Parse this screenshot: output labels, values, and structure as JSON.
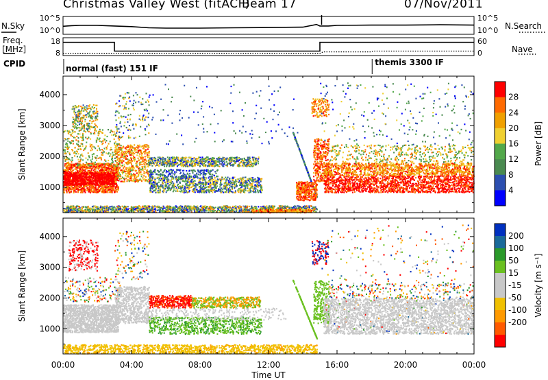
{
  "header": {
    "station": "Christmas Valley West (fitACF)",
    "beam": "Beam 17",
    "date": "07/Nov/2011"
  },
  "status_panel": {
    "left_top": "N.Sky",
    "left_mid_1": "Freq.",
    "left_mid_2": "[MHz]",
    "cpid_label": "CPID",
    "right_top": "N.Search",
    "right_mid": "Nave",
    "noise_ticks_left": [
      "10^5",
      "10^0"
    ],
    "noise_ticks_right": [
      "10^5",
      "10^0"
    ],
    "freq_ticks": [
      "18",
      "8"
    ],
    "nave_ticks": [
      "60",
      "0"
    ],
    "cpid_1": "normal (fast) 151 IF",
    "cpid_2": "themis 3300 IF"
  },
  "colors": {
    "power": [
      "#0000ff",
      "#2c4fb0",
      "#4a8a50",
      "#52a84a",
      "#f0d030",
      "#f0a000",
      "#ff6a00",
      "#ff0000"
    ],
    "velocity": [
      "#ff0000",
      "#ff5a00",
      "#ff9a00",
      "#f0c000",
      "#c8c8c8",
      "#c8c8c8",
      "#6ac020",
      "#2a9a2a",
      "#1a6a9a",
      "#0030c0"
    ]
  },
  "chart_data": [
    {
      "type": "line",
      "name": "noise",
      "series": [
        {
          "name": "N.Sky",
          "x": [
            0,
            0.5,
            1,
            2,
            3,
            4,
            5,
            6,
            8,
            10,
            12,
            14,
            14.8,
            15,
            15.5,
            16,
            18,
            20,
            22,
            24
          ],
          "values": [
            2.2,
            2.4,
            2.5,
            2.5,
            2.3,
            2.1,
            1.7,
            1.6,
            1.6,
            1.7,
            1.8,
            1.9,
            2.8,
            2.3,
            2.3,
            2.5,
            2.6,
            2.6,
            2.7,
            2.6
          ]
        }
      ]
    },
    {
      "type": "line",
      "name": "frequency",
      "series": [
        {
          "name": "Freq.",
          "x": [
            0,
            3,
            3,
            15,
            15,
            24
          ],
          "values": [
            18,
            18,
            11,
            11,
            18,
            18
          ]
        },
        {
          "name": "Nave",
          "x": [
            0,
            15,
            15.2,
            18,
            18.1,
            24
          ],
          "values": [
            6,
            6,
            12,
            12,
            15,
            15
          ]
        }
      ]
    },
    {
      "type": "heatmap",
      "name": "power",
      "xlabel": "",
      "ylabel": "Slant Range [km]",
      "xlim": [
        0,
        24
      ],
      "ylim": [
        180,
        4600
      ],
      "x_ticks": [
        "00:00",
        "04:00",
        "08:00",
        "12:00",
        "16:00",
        "20:00",
        "00:00"
      ],
      "y_ticks": [
        "1000",
        "2000",
        "3000",
        "4000"
      ],
      "colorbar_label": "Power [dB]",
      "colorbar_ticks": [
        "28",
        "24",
        "20",
        "16",
        "12",
        "8",
        "4"
      ]
    },
    {
      "type": "heatmap",
      "name": "velocity",
      "xlabel": "Time UT",
      "ylabel": "Slant Range [km]",
      "xlim": [
        0,
        24
      ],
      "ylim": [
        180,
        4600
      ],
      "x_ticks": [
        "00:00",
        "04:00",
        "08:00",
        "12:00",
        "16:00",
        "20:00",
        "00:00"
      ],
      "y_ticks": [
        "1000",
        "2000",
        "3000",
        "4000"
      ],
      "colorbar_label": "Velocity [m s⁻¹]",
      "colorbar_ticks": [
        "200",
        "100",
        "50",
        "15",
        "-15",
        "-50",
        "-100",
        "-200"
      ]
    }
  ]
}
